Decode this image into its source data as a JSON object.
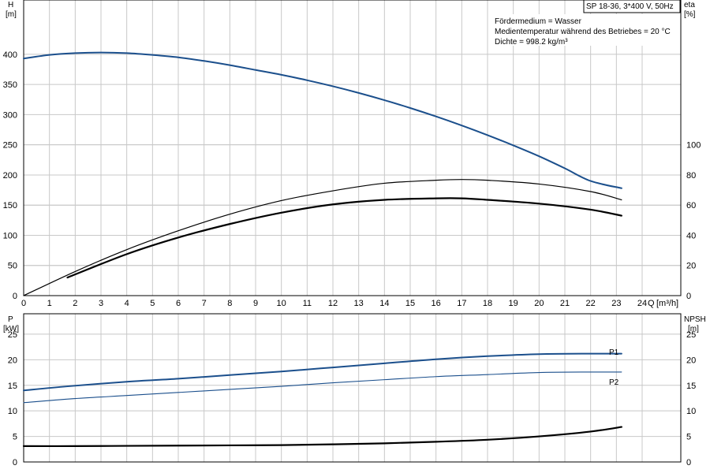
{
  "chart_data": [
    {
      "type": "line",
      "panel": "top",
      "header_box": "SP 18-36, 3*400 V, 50Hz",
      "notes": [
        "Fördermedium = Wasser",
        "Medientemperatur während des Betriebes = 20 °C",
        "Dichte = 998.2 kg/m³"
      ],
      "xlabel": "Q [m³/h]",
      "xlabel_q": "Q",
      "xlabel_unit": "[m³/h]",
      "xlim": [
        0,
        25.5
      ],
      "xticks": [
        0,
        1,
        2,
        3,
        4,
        5,
        6,
        7,
        8,
        9,
        10,
        11,
        12,
        13,
        14,
        15,
        16,
        17,
        18,
        19,
        20,
        21,
        22,
        23,
        24
      ],
      "ylabel_left_name": "H",
      "ylabel_left_unit": "[m]",
      "ylim_left": [
        0,
        490
      ],
      "yticks_left": [
        0,
        50,
        100,
        150,
        200,
        250,
        300,
        350,
        400
      ],
      "ylabel_right_name": "eta",
      "ylabel_right_unit": "[%]",
      "ylim_right": [
        0,
        196
      ],
      "yticks_right": [
        0,
        20,
        40,
        60,
        80,
        100
      ],
      "grid": true,
      "series": [
        {
          "axis": "left",
          "color": "#1b4f8c",
          "width": 2,
          "x": [
            0,
            1,
            2,
            3,
            4,
            5,
            6,
            7,
            8,
            9,
            10,
            11,
            12,
            13,
            14,
            15,
            16,
            17,
            18,
            19,
            20,
            21,
            22,
            23.2
          ],
          "y": [
            393,
            399,
            402,
            403,
            402,
            399,
            395,
            389,
            382,
            374,
            366,
            357,
            347,
            336,
            324,
            311,
            297,
            282,
            266,
            249,
            231,
            211,
            190,
            178
          ]
        },
        {
          "axis": "right",
          "color": "#000000",
          "width": 1.2,
          "x": [
            0,
            2,
            4,
            6,
            8,
            10,
            12,
            14,
            16,
            17,
            18,
            20,
            22,
            23.2
          ],
          "y": [
            0,
            16,
            30.5,
            43,
            54,
            63,
            69.5,
            74.5,
            76.5,
            77,
            76.5,
            74,
            69,
            63.5
          ]
        },
        {
          "axis": "right",
          "color": "#000000",
          "width": 2.2,
          "x": [
            1.7,
            4,
            6,
            8,
            10,
            12,
            14,
            16,
            17,
            18,
            20,
            22,
            23.2
          ],
          "y": [
            12,
            27.5,
            38.5,
            47.5,
            55,
            60.5,
            63.5,
            64.5,
            64.5,
            63.5,
            61,
            57,
            53
          ]
        }
      ]
    },
    {
      "type": "line",
      "panel": "bottom",
      "xlim": [
        0,
        25.5
      ],
      "ylabel_left_name": "P",
      "ylabel_left_unit": "[kW]",
      "ylim_left": [
        0,
        29
      ],
      "yticks_left": [
        0,
        5,
        10,
        15,
        20,
        25
      ],
      "ylabel_right_name": "NPSH",
      "ylabel_right_unit": "[m]",
      "ylim_right": [
        0,
        29
      ],
      "yticks_right": [
        0,
        5,
        10,
        15,
        20,
        25
      ],
      "grid": true,
      "series": [
        {
          "name": "P1",
          "axis": "left",
          "color": "#1b4f8c",
          "width": 2,
          "x": [
            0,
            1.7,
            4,
            6,
            8,
            10,
            12,
            14,
            16,
            18,
            20,
            22,
            23.2
          ],
          "y": [
            14.0,
            14.8,
            15.7,
            16.3,
            17.0,
            17.7,
            18.5,
            19.3,
            20.1,
            20.7,
            21.1,
            21.2,
            21.2
          ]
        },
        {
          "name": "P2",
          "axis": "left",
          "color": "#1b4f8c",
          "width": 1.1,
          "x": [
            0,
            2,
            4,
            6,
            8,
            10,
            12,
            14,
            16,
            18,
            20,
            22,
            23.2
          ],
          "y": [
            11.6,
            12.4,
            13.0,
            13.6,
            14.2,
            14.8,
            15.5,
            16.1,
            16.7,
            17.1,
            17.5,
            17.6,
            17.6
          ]
        },
        {
          "axis": "right",
          "color": "#000000",
          "width": 2.2,
          "x": [
            0,
            2,
            4,
            6,
            8,
            10,
            12,
            14,
            16,
            18,
            20,
            22,
            23.2
          ],
          "y": [
            3.1,
            3.1,
            3.15,
            3.2,
            3.25,
            3.3,
            3.45,
            3.65,
            3.95,
            4.35,
            5.0,
            5.95,
            6.85
          ]
        }
      ]
    }
  ]
}
